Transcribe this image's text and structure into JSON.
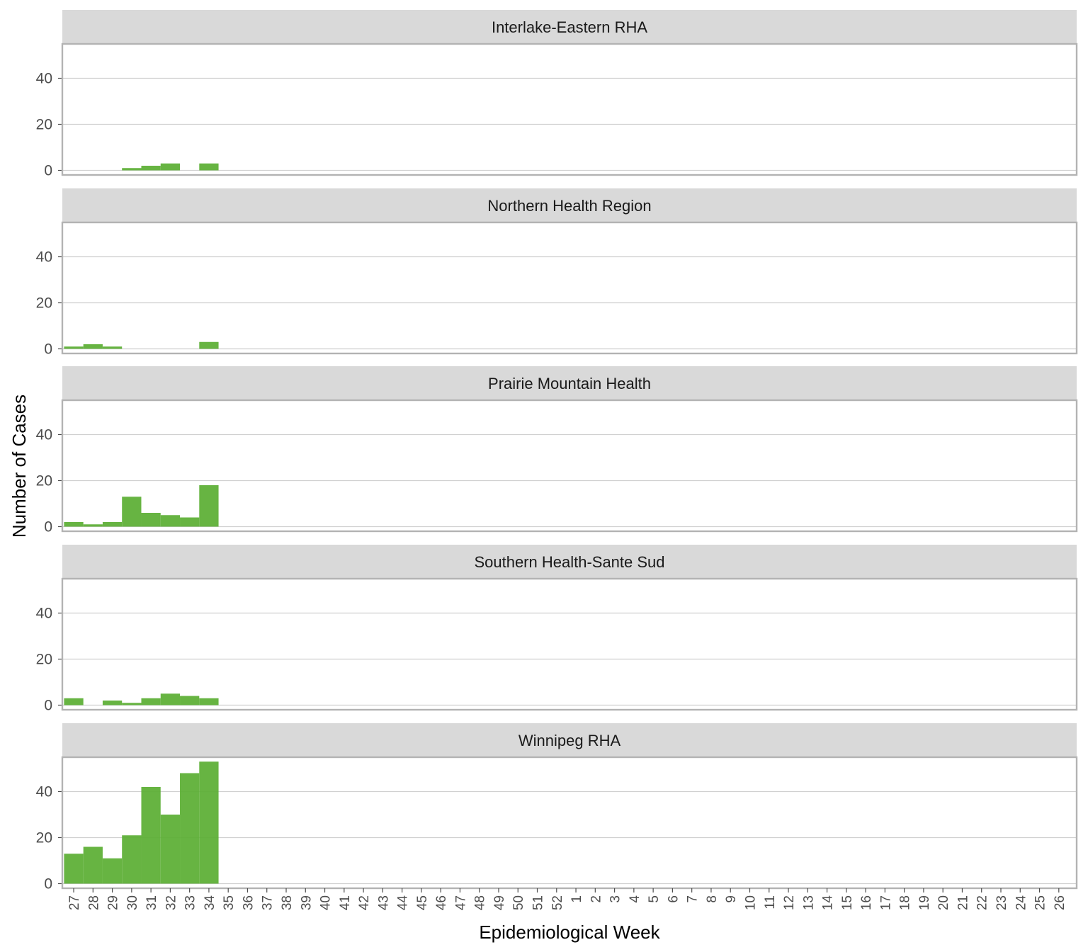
{
  "chart_data": {
    "type": "bar",
    "xlabel": "Epidemiological Week",
    "ylabel": "Number of Cases",
    "ylim": [
      0,
      56
    ],
    "yticks": [
      0,
      20,
      40
    ],
    "grid": true,
    "categories": [
      "27",
      "28",
      "29",
      "30",
      "31",
      "32",
      "33",
      "34",
      "35",
      "36",
      "37",
      "38",
      "39",
      "40",
      "41",
      "42",
      "43",
      "44",
      "45",
      "46",
      "47",
      "48",
      "49",
      "50",
      "51",
      "52",
      "1",
      "2",
      "3",
      "4",
      "5",
      "6",
      "7",
      "8",
      "9",
      "10",
      "11",
      "12",
      "13",
      "14",
      "15",
      "16",
      "17",
      "18",
      "19",
      "20",
      "21",
      "22",
      "23",
      "24",
      "25",
      "26"
    ],
    "bar_color": "#5aae32",
    "panels": [
      {
        "name": "Interlake-Eastern RHA",
        "values": [
          0,
          0,
          0,
          1,
          2,
          3,
          0,
          3
        ]
      },
      {
        "name": "Northern Health Region",
        "values": [
          1,
          2,
          1,
          0,
          0,
          0,
          0,
          3
        ]
      },
      {
        "name": "Prairie Mountain Health",
        "values": [
          2,
          1,
          2,
          13,
          6,
          5,
          4,
          18
        ]
      },
      {
        "name": "Southern Health-Sante Sud",
        "values": [
          3,
          0,
          2,
          1,
          3,
          5,
          4,
          3
        ]
      },
      {
        "name": "Winnipeg RHA",
        "values": [
          13,
          16,
          11,
          21,
          42,
          30,
          48,
          53
        ]
      }
    ]
  }
}
